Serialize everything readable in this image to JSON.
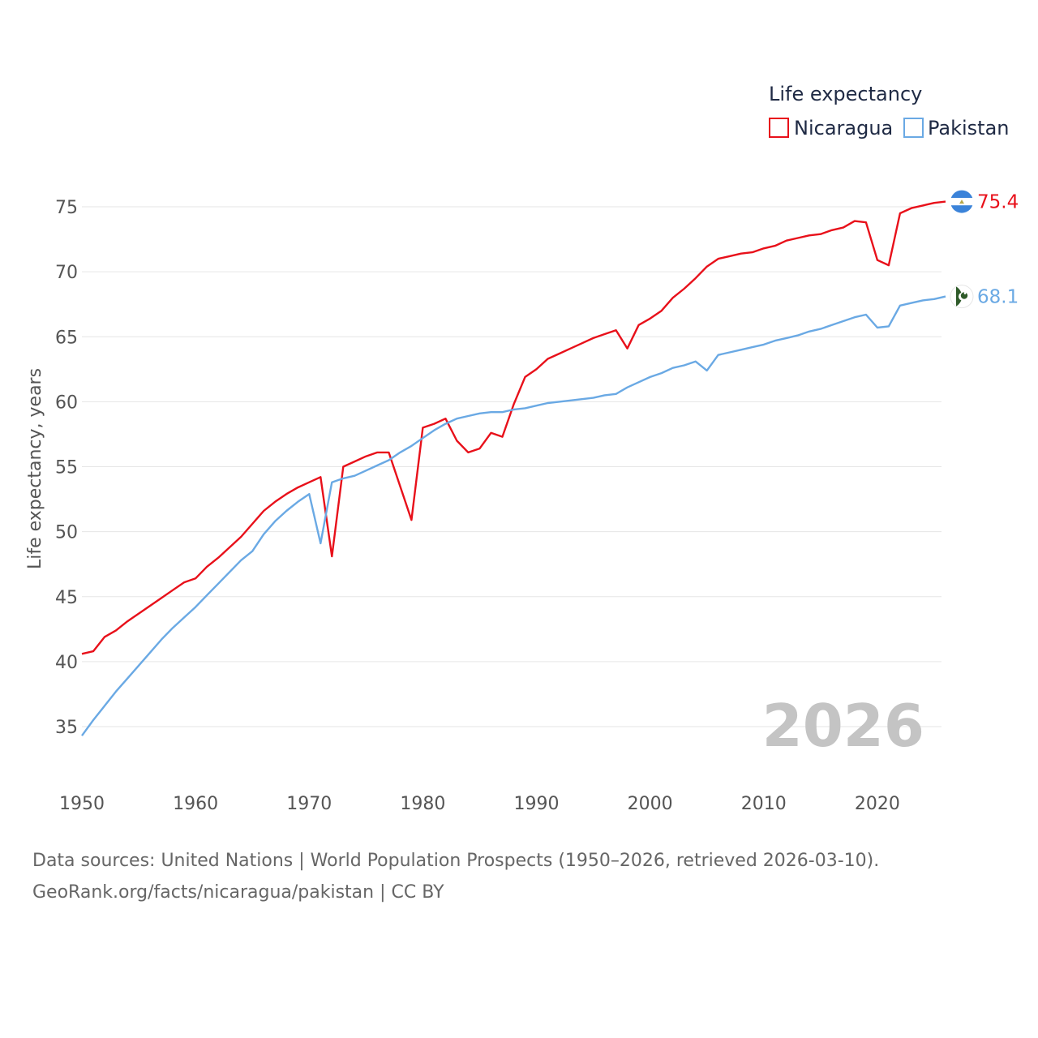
{
  "chart_data": {
    "type": "line",
    "legend_title": "Life expectancy",
    "ylabel": "Life expectancy, years",
    "xlabel": "",
    "xlim": [
      1950,
      2026
    ],
    "ylim": [
      32.5,
      76.5
    ],
    "x_ticks": [
      1950,
      1960,
      1970,
      1980,
      1990,
      2000,
      2010,
      2020
    ],
    "y_ticks": [
      35,
      40,
      45,
      50,
      55,
      60,
      65,
      70,
      75
    ],
    "grid": true,
    "current_year": "2026",
    "series": [
      {
        "name": "Nicaragua",
        "color": "#e8101a",
        "end_label": "75.4",
        "flag_icon": "nicaragua-flag-icon",
        "x": [
          1950,
          1951,
          1952,
          1953,
          1954,
          1955,
          1956,
          1957,
          1958,
          1959,
          1960,
          1961,
          1962,
          1963,
          1964,
          1965,
          1966,
          1967,
          1968,
          1969,
          1970,
          1971,
          1972,
          1973,
          1974,
          1975,
          1976,
          1977,
          1978,
          1979,
          1980,
          1981,
          1982,
          1983,
          1984,
          1985,
          1986,
          1987,
          1988,
          1989,
          1990,
          1991,
          1992,
          1993,
          1994,
          1995,
          1996,
          1997,
          1998,
          1999,
          2000,
          2001,
          2002,
          2003,
          2004,
          2005,
          2006,
          2007,
          2008,
          2009,
          2010,
          2011,
          2012,
          2013,
          2014,
          2015,
          2016,
          2017,
          2018,
          2019,
          2020,
          2021,
          2022,
          2023,
          2024,
          2025,
          2026
        ],
        "values": [
          40.6,
          40.8,
          41.9,
          42.4,
          43.1,
          43.7,
          44.3,
          44.9,
          45.5,
          46.1,
          46.4,
          47.3,
          48.0,
          48.8,
          49.6,
          50.6,
          51.6,
          52.3,
          52.9,
          53.4,
          53.8,
          54.2,
          48.1,
          55.0,
          55.4,
          55.8,
          56.1,
          56.1,
          53.5,
          50.9,
          58.0,
          58.3,
          58.7,
          57.0,
          56.1,
          56.4,
          57.6,
          57.3,
          59.8,
          61.9,
          62.5,
          63.3,
          63.7,
          64.1,
          64.5,
          64.9,
          65.2,
          65.5,
          64.1,
          65.9,
          66.4,
          67.0,
          68.0,
          68.7,
          69.5,
          70.4,
          71.0,
          71.2,
          71.4,
          71.5,
          71.8,
          72.0,
          72.4,
          72.6,
          72.8,
          72.9,
          73.2,
          73.4,
          73.9,
          73.8,
          70.9,
          70.5,
          74.5,
          74.9,
          75.1,
          75.3,
          75.4
        ]
      },
      {
        "name": "Pakistan",
        "color": "#6aa9e4",
        "end_label": "68.1",
        "flag_icon": "pakistan-flag-icon",
        "x": [
          1950,
          1951,
          1952,
          1953,
          1954,
          1955,
          1956,
          1957,
          1958,
          1959,
          1960,
          1961,
          1962,
          1963,
          1964,
          1965,
          1966,
          1967,
          1968,
          1969,
          1970,
          1971,
          1972,
          1973,
          1974,
          1975,
          1976,
          1977,
          1978,
          1979,
          1980,
          1981,
          1982,
          1983,
          1984,
          1985,
          1986,
          1987,
          1988,
          1989,
          1990,
          1991,
          1992,
          1993,
          1994,
          1995,
          1996,
          1997,
          1998,
          1999,
          2000,
          2001,
          2002,
          2003,
          2004,
          2005,
          2006,
          2007,
          2008,
          2009,
          2010,
          2011,
          2012,
          2013,
          2014,
          2015,
          2016,
          2017,
          2018,
          2019,
          2020,
          2021,
          2022,
          2023,
          2024,
          2025,
          2026
        ],
        "values": [
          34.3,
          35.5,
          36.6,
          37.7,
          38.7,
          39.7,
          40.7,
          41.7,
          42.6,
          43.4,
          44.2,
          45.1,
          46.0,
          46.9,
          47.8,
          48.5,
          49.8,
          50.8,
          51.6,
          52.3,
          52.9,
          49.1,
          53.8,
          54.1,
          54.3,
          54.7,
          55.1,
          55.5,
          56.1,
          56.6,
          57.2,
          57.8,
          58.3,
          58.7,
          58.9,
          59.1,
          59.2,
          59.2,
          59.4,
          59.5,
          59.7,
          59.9,
          60.0,
          60.1,
          60.2,
          60.3,
          60.5,
          60.6,
          61.1,
          61.5,
          61.9,
          62.2,
          62.6,
          62.8,
          63.1,
          62.4,
          63.6,
          63.8,
          64.0,
          64.2,
          64.4,
          64.7,
          64.9,
          65.1,
          65.4,
          65.6,
          65.9,
          66.2,
          66.5,
          66.7,
          65.7,
          65.8,
          67.4,
          67.6,
          67.8,
          67.9,
          68.1
        ]
      }
    ]
  },
  "footer": {
    "line1": "Data sources: United Nations | World Population Prospects (1950–2026, retrieved 2026-03-10).",
    "line2": "GeoRank.org/facts/nicaragua/pakistan | CC BY"
  }
}
